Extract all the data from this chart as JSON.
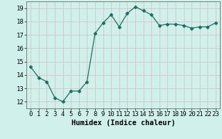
{
  "x": [
    0,
    1,
    2,
    3,
    4,
    5,
    6,
    7,
    8,
    9,
    10,
    11,
    12,
    13,
    14,
    15,
    16,
    17,
    18,
    19,
    20,
    21,
    22,
    23
  ],
  "y": [
    14.6,
    13.8,
    13.5,
    12.3,
    12.0,
    12.8,
    12.8,
    13.5,
    17.1,
    17.9,
    18.5,
    17.6,
    18.6,
    19.1,
    18.8,
    18.5,
    17.7,
    17.8,
    17.8,
    17.7,
    17.5,
    17.6,
    17.6,
    17.9
  ],
  "line_color": "#1a6b60",
  "marker": "D",
  "marker_size": 2.5,
  "bg_color": "#cff0eb",
  "grid_color": "#d4c8cc",
  "xlabel": "Humidex (Indice chaleur)",
  "xlabel_fontsize": 7.5,
  "xlim": [
    -0.5,
    23.5
  ],
  "ylim": [
    11.5,
    19.5
  ],
  "yticks": [
    12,
    13,
    14,
    15,
    16,
    17,
    18,
    19
  ],
  "xtick_labels": [
    "0",
    "1",
    "2",
    "3",
    "4",
    "5",
    "6",
    "7",
    "8",
    "9",
    "10",
    "11",
    "12",
    "13",
    "14",
    "15",
    "16",
    "17",
    "18",
    "19",
    "20",
    "21",
    "22",
    "23"
  ],
  "tick_fontsize": 6.5
}
